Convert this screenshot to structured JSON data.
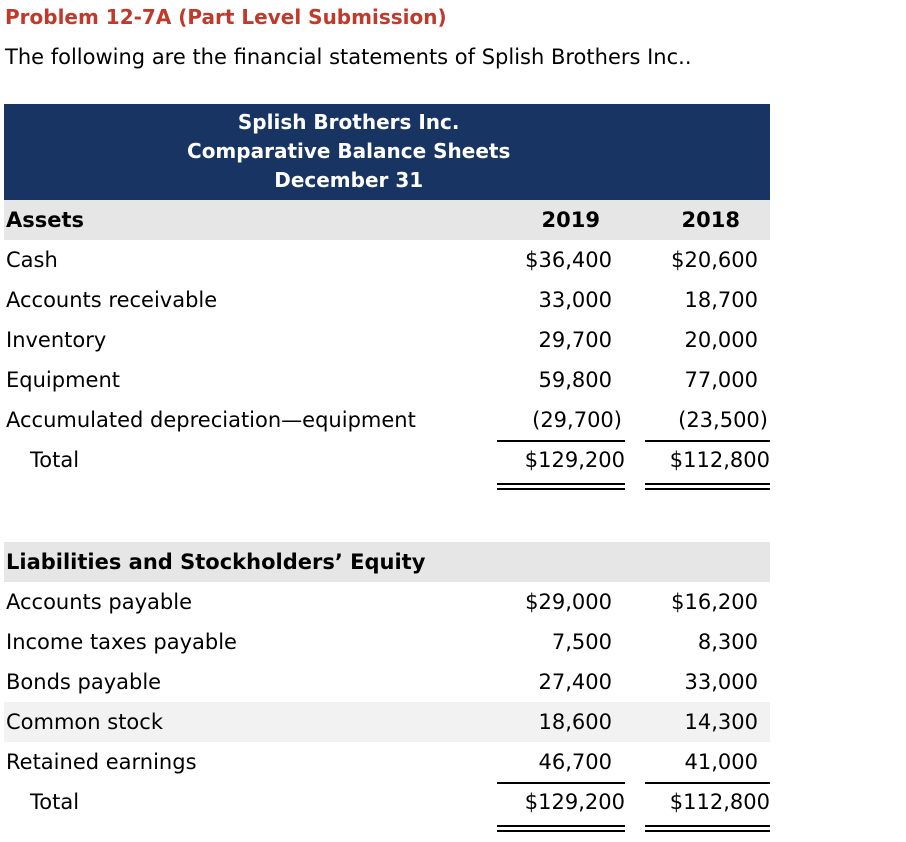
{
  "header": {
    "title": "Problem 12-7A (Part Level Submission)",
    "subtitle": "The following are the financial statements of Splish Brothers Inc.."
  },
  "table": {
    "title_lines": [
      "Splish Brothers Inc.",
      "Comparative Balance Sheets",
      "December 31"
    ],
    "assets": {
      "heading": "Assets",
      "years": [
        "2019",
        "2018"
      ],
      "rows": [
        [
          "Cash",
          "$36,400",
          "$20,600"
        ],
        [
          "Accounts receivable",
          "33,000",
          "18,700"
        ],
        [
          "Inventory",
          "29,700",
          "20,000"
        ],
        [
          "Equipment",
          "59,800",
          "77,000"
        ],
        [
          "Accumulated depreciation—equipment",
          "(29,700)",
          "(23,500)"
        ]
      ],
      "total": [
        "Total",
        "$129,200",
        "$112,800"
      ]
    },
    "liabilities": {
      "heading": "Liabilities and Stockholders’ Equity",
      "rows": [
        [
          "Accounts payable",
          "$29,000",
          "$16,200"
        ],
        [
          "Income taxes payable",
          "7,500",
          "8,300"
        ],
        [
          "Bonds payable",
          "27,400",
          "33,000"
        ],
        [
          "Common stock",
          "18,600",
          "14,300"
        ],
        [
          "Retained earnings",
          "46,700",
          "41,000"
        ]
      ],
      "total": [
        "Total",
        "$129,200",
        "$112,800"
      ]
    }
  }
}
